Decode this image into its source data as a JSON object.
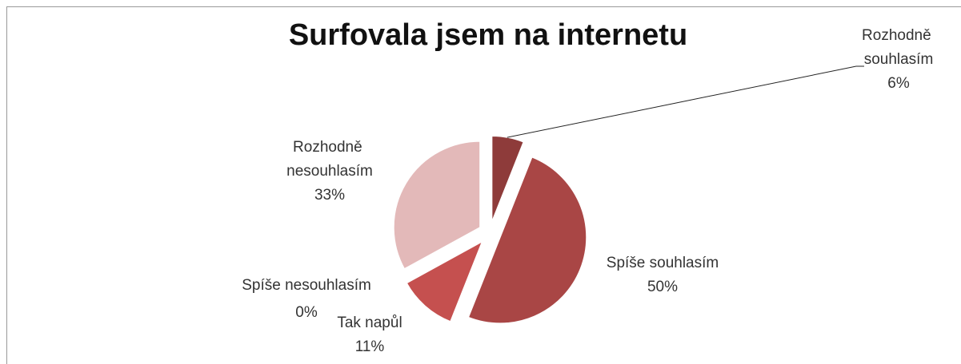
{
  "chart_data": {
    "type": "pie",
    "title": "Surfovala jsem na internetu",
    "categories": [
      "Rozhodně souhlasím",
      "Spíše souhlasím",
      "Tak napůl",
      "Spíše nesouhlasím",
      "Rozhodně nesouhlasím"
    ],
    "values": [
      6,
      50,
      11,
      0,
      33
    ],
    "value_labels": [
      "6%",
      "50%",
      "11%",
      "0%",
      "33%"
    ],
    "colors": [
      "#8e3b3a",
      "#a94645",
      "#c5504f",
      "#d98a89",
      "#e3b9b9"
    ]
  }
}
